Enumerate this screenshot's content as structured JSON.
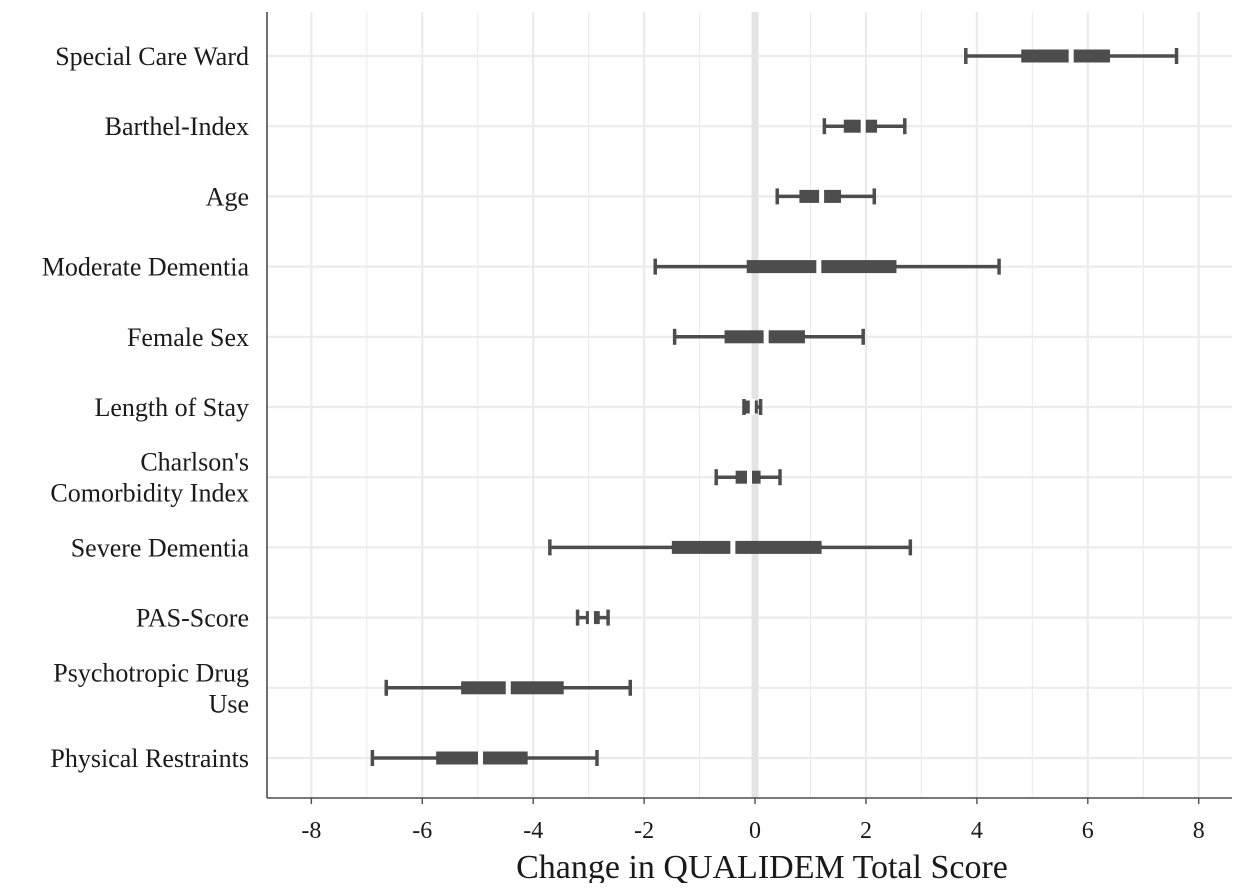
{
  "chart_data": {
    "type": "forest",
    "xlabel": "Change in QUALIDEM Total Score",
    "ylabel": "",
    "title": "",
    "xlim": [
      -8.8,
      8.6
    ],
    "x_ticks": [
      -8,
      -6,
      -4,
      -2,
      0,
      2,
      4,
      6,
      8
    ],
    "grid": true,
    "reference_line": 0,
    "colors": {
      "interval": "#4d4d4d",
      "grid": "#ebebeb",
      "axis": "#4d4d4d"
    },
    "series": [
      {
        "label": "Special Care Ward",
        "estimate": 5.7,
        "ci_inner": [
          4.8,
          6.4
        ],
        "ci_outer": [
          3.8,
          7.6
        ]
      },
      {
        "label": "Barthel-Index",
        "estimate": 1.95,
        "ci_inner": [
          1.6,
          2.2
        ],
        "ci_outer": [
          1.25,
          2.7
        ]
      },
      {
        "label": "Age",
        "estimate": 1.2,
        "ci_inner": [
          0.8,
          1.55
        ],
        "ci_outer": [
          0.4,
          2.15
        ]
      },
      {
        "label": "Moderate Dementia",
        "estimate": 1.15,
        "ci_inner": [
          -0.15,
          2.55
        ],
        "ci_outer": [
          -1.8,
          4.4
        ]
      },
      {
        "label": "Female Sex",
        "estimate": 0.2,
        "ci_inner": [
          -0.55,
          0.9
        ],
        "ci_outer": [
          -1.45,
          1.95
        ]
      },
      {
        "label": "Length of Stay",
        "estimate": -0.05,
        "ci_inner": [
          -0.2,
          0.05
        ],
        "ci_outer": [
          -0.2,
          0.1
        ]
      },
      {
        "label": "Charlson's\nComorbidity Index",
        "estimate": -0.1,
        "ci_inner": [
          -0.35,
          0.1
        ],
        "ci_outer": [
          -0.7,
          0.45
        ]
      },
      {
        "label": "Severe Dementia",
        "estimate": -0.4,
        "ci_inner": [
          -1.5,
          1.2
        ],
        "ci_outer": [
          -3.7,
          2.8
        ]
      },
      {
        "label": "PAS-Score",
        "estimate": -2.95,
        "ci_inner": [
          -3.05,
          -2.8
        ],
        "ci_outer": [
          -3.2,
          -2.65
        ]
      },
      {
        "label": "Psychotropic Drug\nUse",
        "estimate": -4.45,
        "ci_inner": [
          -5.3,
          -3.45
        ],
        "ci_outer": [
          -6.65,
          -2.25
        ]
      },
      {
        "label": "Physical Restraints",
        "estimate": -4.95,
        "ci_inner": [
          -5.75,
          -4.1
        ],
        "ci_outer": [
          -6.9,
          -2.85
        ]
      }
    ]
  }
}
